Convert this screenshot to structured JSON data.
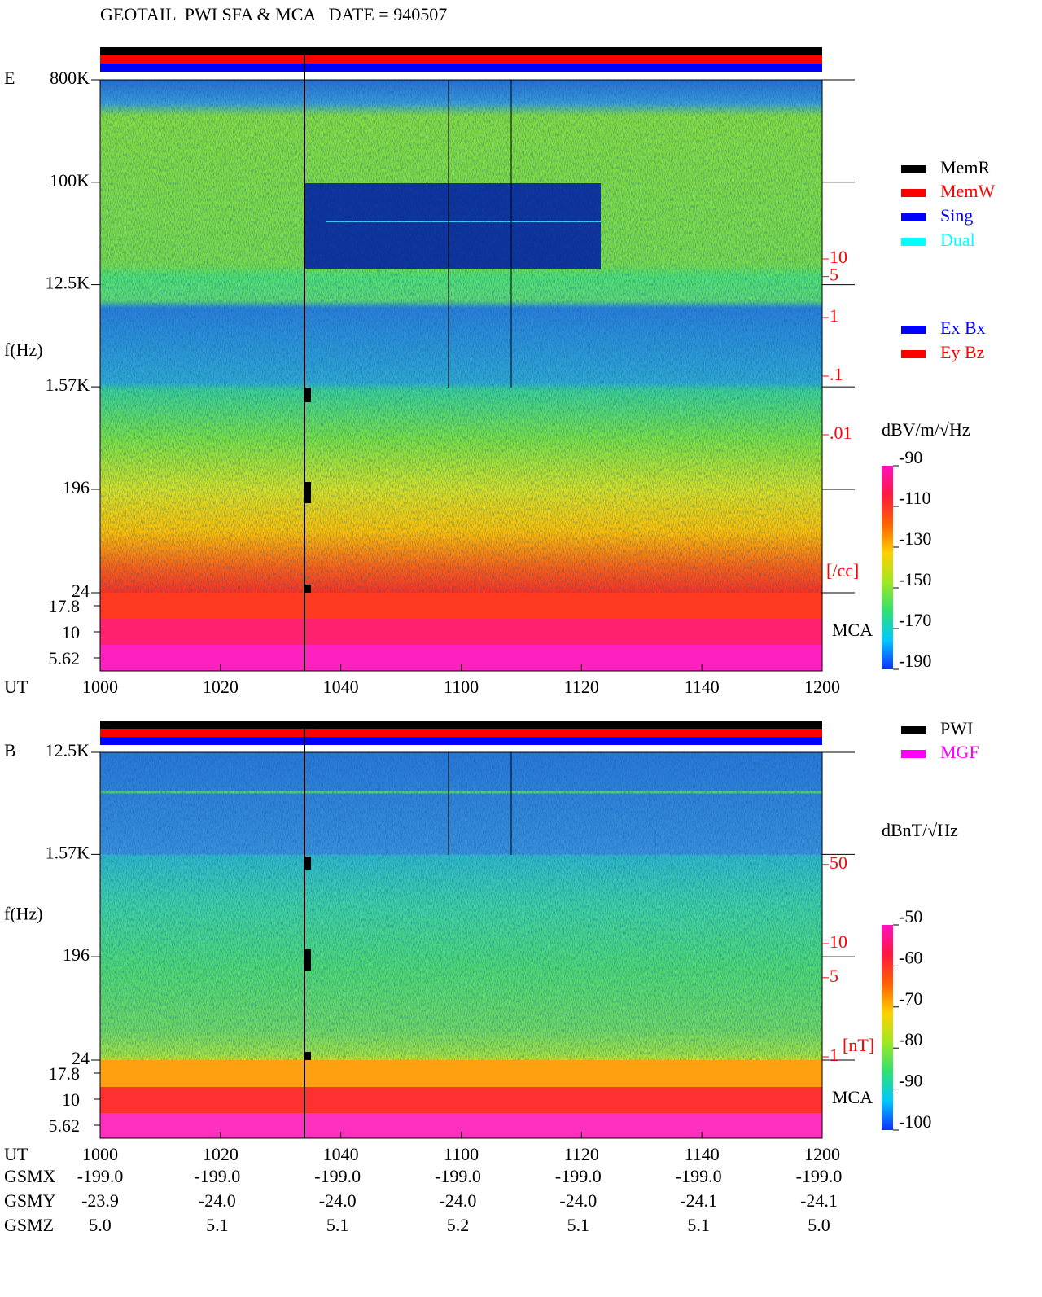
{
  "header": {
    "title": "GEOTAIL  PWI SFA & MCA   DATE = 940507"
  },
  "chart_data": [
    {
      "type": "spectrogram",
      "panel_label": "E",
      "y_label": "f(Hz)",
      "x_label": "UT",
      "categories": [
        "1000",
        "1020",
        "1040",
        "1100",
        "1120",
        "1140",
        "1200"
      ],
      "log_y": true,
      "ylim": [
        24,
        800000
      ],
      "yticks": [
        {
          "value": 800000,
          "label": "800K"
        },
        {
          "value": 100000,
          "label": "100K"
        },
        {
          "value": 12500,
          "label": "12.5K"
        },
        {
          "value": 1570,
          "label": "1.57K"
        },
        196,
        24
      ],
      "mca_ticks": [
        17.8,
        10,
        5.62
      ],
      "mca_label": "MCA",
      "y2_label": "[/cc]",
      "y2color": "#ff0000",
      "y2lim": [
        0.0001,
        10
      ],
      "y2ticks": [
        10,
        5,
        1,
        {
          "value": 0.1,
          "label": ".1"
        },
        {
          "value": 0.01,
          "label": ".01"
        }
      ],
      "colorbar": {
        "label": "dBV/m/√Hz",
        "lim": [
          -190,
          -90
        ],
        "ticks": [
          -90,
          -110,
          -130,
          -150,
          -170,
          -190
        ],
        "colors": [
          "#1030ff",
          "#00c8ff",
          "#30e070",
          "#a0e820",
          "#ffd000",
          "#ff6000",
          "#ff1840",
          "#ff10c0"
        ]
      },
      "legend": [
        {
          "name": "MemR",
          "color": "#000000"
        },
        {
          "name": "MemW",
          "color": "#ff0000"
        },
        {
          "name": "Sing",
          "color": "#0000ff"
        },
        {
          "name": "Dual",
          "color": "#00ffff"
        }
      ],
      "legend2": [
        {
          "name": "Ex Bx",
          "color": "#0000ff"
        },
        {
          "name": "Ey Bz",
          "color": "#ff0000"
        }
      ]
    },
    {
      "type": "spectrogram",
      "panel_label": "B",
      "y_label": "f(Hz)",
      "x_label": "UT",
      "categories": [
        "1000",
        "1020",
        "1040",
        "1100",
        "1120",
        "1140",
        "1200"
      ],
      "log_y": true,
      "ylim": [
        24,
        12500
      ],
      "yticks": [
        {
          "value": 12500,
          "label": "12.5K"
        },
        {
          "value": 1570,
          "label": "1.57K"
        },
        196,
        24
      ],
      "mca_ticks": [
        17.8,
        10,
        5.62
      ],
      "mca_label": "MCA",
      "y2_label": "[nT]",
      "y2color": "#ff0000",
      "y2lim": [
        1,
        100
      ],
      "y2ticks": [
        50,
        10,
        5,
        1
      ],
      "colorbar": {
        "label": "dBnT/√Hz",
        "lim": [
          -100,
          -50
        ],
        "ticks": [
          -50,
          -60,
          -70,
          -80,
          -90,
          -100
        ],
        "colors": [
          "#1030ff",
          "#00c8ff",
          "#30e070",
          "#a0e820",
          "#ffd000",
          "#ff6000",
          "#ff1840",
          "#ff10c0"
        ]
      },
      "legend": [
        {
          "name": "PWI",
          "color": "#000000"
        },
        {
          "name": "MGF",
          "color": "#ff00ff"
        }
      ]
    }
  ],
  "orbit": {
    "rows": [
      {
        "label": "GSMX",
        "values": [
          "-199.0",
          "-199.0",
          "-199.0",
          "-199.0",
          "-199.0",
          "-199.0",
          "-199.0"
        ]
      },
      {
        "label": "GSMY",
        "values": [
          "-23.9",
          "-24.0",
          "-24.0",
          "-24.0",
          "-24.0",
          "-24.1",
          "-24.1"
        ]
      },
      {
        "label": "GSMZ",
        "values": [
          "5.0",
          "5.1",
          "5.1",
          "5.2",
          "5.1",
          "5.1",
          "5.0"
        ]
      }
    ]
  }
}
